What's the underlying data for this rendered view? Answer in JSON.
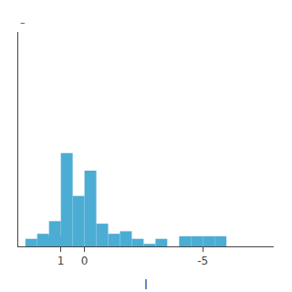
{
  "chart_data": {
    "type": "bar",
    "x": [
      2.0,
      1.5,
      1.0,
      0.5,
      0.0,
      -0.5,
      -1.0,
      -1.5,
      -2.0,
      -2.5,
      -3.0,
      -3.5,
      -4.5,
      -5.0,
      -5.5,
      -6.0,
      0.75,
      1.25
    ],
    "values": [
      0.03,
      0.05,
      0.1,
      0.37,
      0.2,
      0.3,
      0.09,
      0.05,
      0.06,
      0.03,
      0.01,
      0.03,
      0.04,
      0.04,
      0.04,
      0.04,
      0.04,
      0.04
    ],
    "color": "#4CADD4",
    "xlabel": "l",
    "xlim": [
      2.8,
      -8.0
    ],
    "xticks": [
      0,
      -5,
      1
    ],
    "ylim": [
      0,
      0.85
    ],
    "tick_labels": "x",
    "grid": false,
    "annotations": [
      "–"
    ]
  }
}
